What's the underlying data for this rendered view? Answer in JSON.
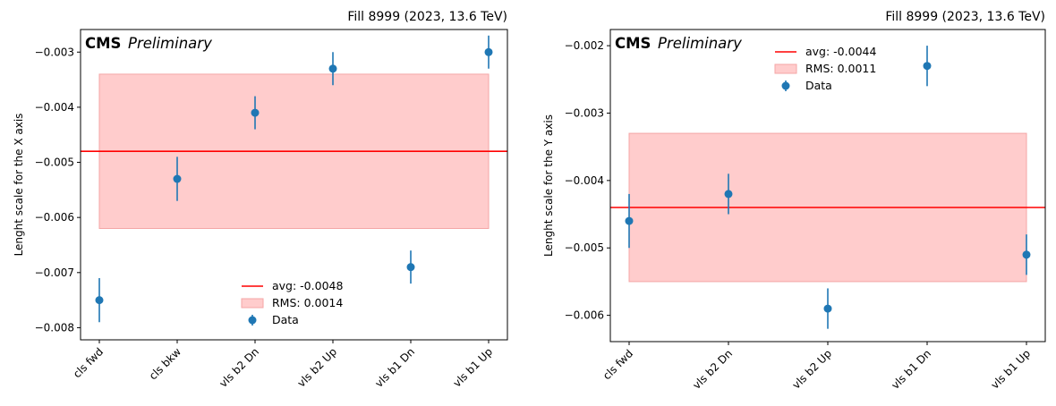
{
  "chart_data": [
    {
      "type": "scatter",
      "title": "Fill 8999 (2023, 13.6 TeV)",
      "experiment": "CMS",
      "experiment_status": "Preliminary",
      "xlabel": "",
      "ylabel": "Lenght scale for the X axis",
      "categories": [
        "cls fwd",
        "cls bkw",
        "vls b2 Dn",
        "vls b2 Up",
        "vls b1 Dn",
        "vls b1 Up"
      ],
      "values": [
        -0.0075,
        -0.0053,
        -0.0041,
        -0.0033,
        -0.0069,
        -0.003
      ],
      "errors": [
        0.0004,
        0.0004,
        0.0003,
        0.0003,
        0.0003,
        0.0003
      ],
      "yticks": [
        -0.008,
        -0.007,
        -0.006,
        -0.005,
        -0.004,
        -0.003
      ],
      "ytick_labels": [
        "−0.008",
        "−0.007",
        "−0.006",
        "−0.005",
        "−0.004",
        "−0.003"
      ],
      "ylim": [
        -0.00822,
        -0.00259
      ],
      "avg": -0.0048,
      "rms": 0.0014,
      "legend": {
        "placement": "lower-center",
        "avg_label": "avg: -0.0048",
        "rms_label": "RMS: 0.0014",
        "data_label": "Data"
      },
      "colors": {
        "data": "#1f77b4",
        "avg_line": "#ff0000",
        "rms_band": "#ffcccc",
        "rms_edge": "#f4a6a6"
      }
    },
    {
      "type": "scatter",
      "title": "Fill 8999 (2023, 13.6 TeV)",
      "experiment": "CMS",
      "experiment_status": "Preliminary",
      "xlabel": "",
      "ylabel": "Lenght scale for the Y axis",
      "categories": [
        "cls fwd",
        "vls b2 Dn",
        "vls b2 Up",
        "vls b1 Dn",
        "vls b1 Up"
      ],
      "values": [
        -0.0046,
        -0.0042,
        -0.0059,
        -0.0023,
        -0.0051
      ],
      "errors": [
        0.0004,
        0.0003,
        0.0003,
        0.0003,
        0.0003
      ],
      "yticks": [
        -0.006,
        -0.005,
        -0.004,
        -0.003,
        -0.002
      ],
      "ytick_labels": [
        "−0.006",
        "−0.005",
        "−0.004",
        "−0.003",
        "−0.002"
      ],
      "ylim": [
        -0.00639,
        -0.00176
      ],
      "avg": -0.0044,
      "rms": 0.0011,
      "legend": {
        "placement": "upper-center",
        "avg_label": "avg: -0.0044",
        "rms_label": "RMS: 0.0011",
        "data_label": "Data"
      },
      "colors": {
        "data": "#1f77b4",
        "avg_line": "#ff0000",
        "rms_band": "#ffcccc",
        "rms_edge": "#f4a6a6"
      }
    }
  ]
}
